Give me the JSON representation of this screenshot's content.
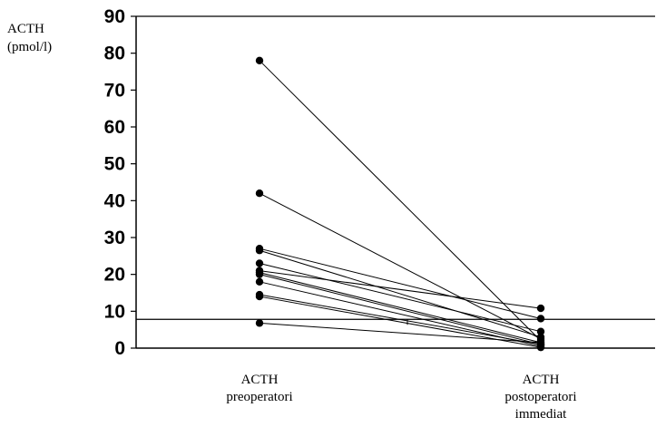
{
  "chart_data": {
    "type": "scatter",
    "title": "",
    "ylabel_lines": [
      "ACTH",
      "(pmol/l)"
    ],
    "xlabel": "",
    "ylim": [
      0,
      90
    ],
    "yticks": [
      0,
      10,
      20,
      30,
      40,
      50,
      60,
      70,
      80,
      90
    ],
    "categories": [
      {
        "lines": [
          "ACTH",
          "preoperatori"
        ]
      },
      {
        "lines": [
          "ACTH",
          "postoperatori",
          "immediat"
        ]
      }
    ],
    "reference_line": 7.8,
    "grid": false,
    "legend": "none",
    "marker_color": "#000000",
    "line_color": "#000000",
    "pairs": [
      {
        "pre": 78,
        "post": 2
      },
      {
        "pre": 42,
        "post": 2.5
      },
      {
        "pre": 27,
        "post": 8
      },
      {
        "pre": 26.5,
        "post": 3
      },
      {
        "pre": 23,
        "post": 4.5
      },
      {
        "pre": 21,
        "post": 10.8
      },
      {
        "pre": 20.5,
        "post": 1.5
      },
      {
        "pre": 20,
        "post": 1
      },
      {
        "pre": 18,
        "post": 0.5
      },
      {
        "pre": 14.5,
        "post": 1
      },
      {
        "pre": 14,
        "post": 0.2
      },
      {
        "pre": 6.8,
        "post": 1.5
      }
    ]
  }
}
